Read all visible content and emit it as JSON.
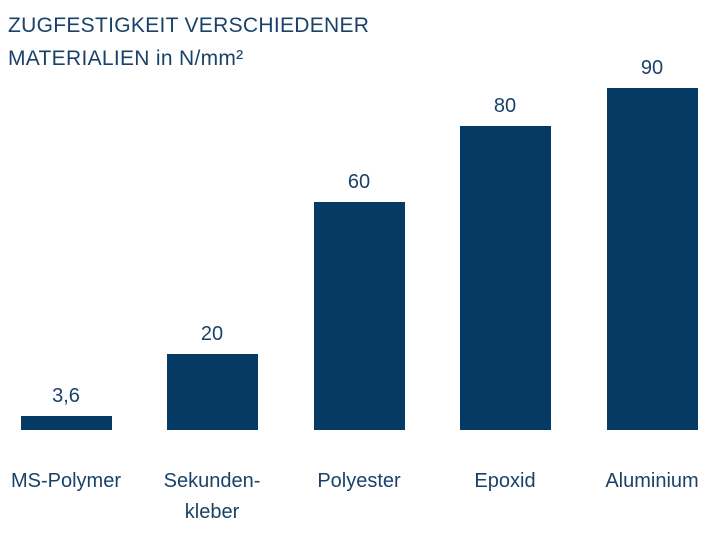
{
  "title": {
    "line1": "ZUGFESTIGKEIT VERSCHIEDENER",
    "line2": "MATERIALIEN in N/mm²"
  },
  "colors": {
    "bar": "#043a63",
    "text": "#1a4269",
    "background": "#ffffff"
  },
  "chart_data": {
    "type": "bar",
    "title": "ZUGFESTIGKEIT VERSCHIEDENER MATERIALIEN in N/mm²",
    "categories": [
      "MS-Polymer",
      "Sekunden-\nkleber",
      "Polyester",
      "Epoxid",
      "Aluminium"
    ],
    "values": [
      3.6,
      20,
      60,
      80,
      90
    ],
    "value_labels": [
      "3,6",
      "20",
      "60",
      "80",
      "90"
    ],
    "xlabel": "",
    "ylabel": "N/mm²",
    "ylim": [
      0,
      90
    ],
    "grid": false,
    "legend": false,
    "orientation": "vertical",
    "bar_color": "#043a63",
    "text_color": "#1a4269"
  }
}
